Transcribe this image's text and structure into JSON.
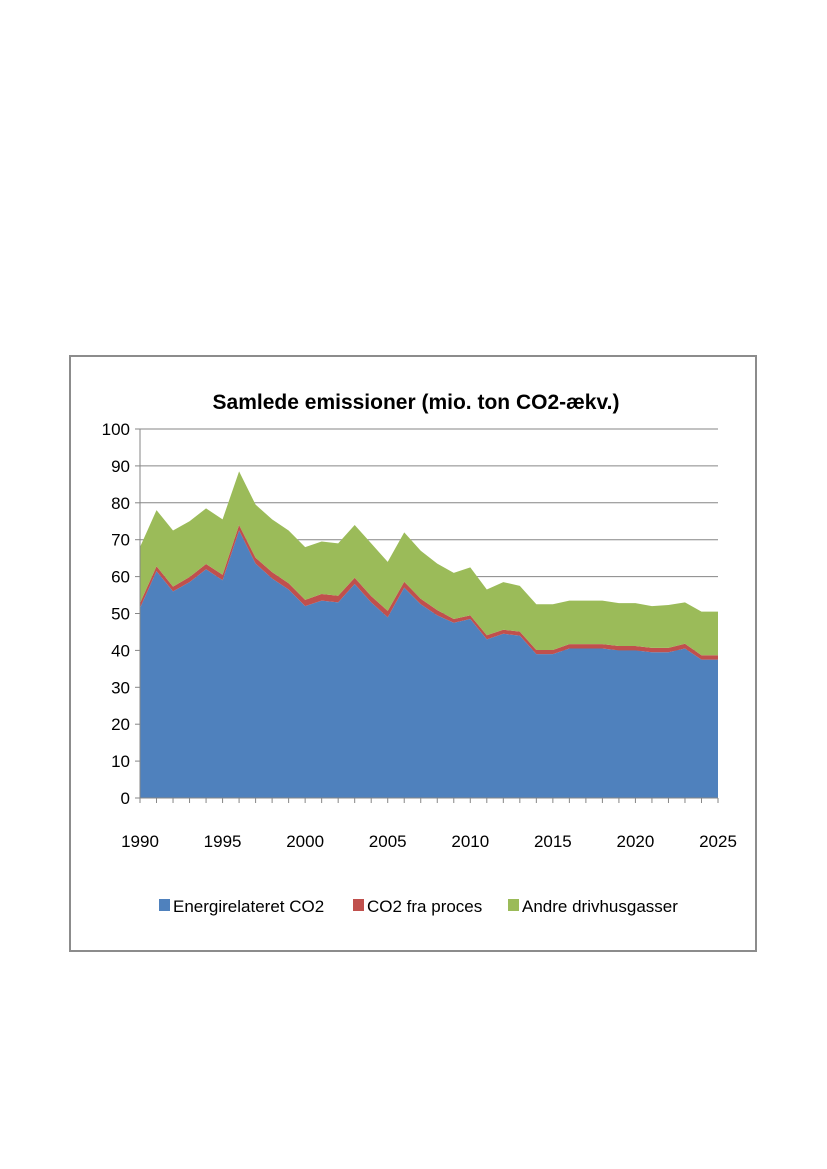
{
  "chart_data": {
    "type": "area",
    "stacked": true,
    "title": "Samlede emissioner (mio. ton CO2-ækv.)",
    "xlabel": "",
    "ylabel": "",
    "xlim": [
      1990,
      2025
    ],
    "ylim": [
      0,
      100
    ],
    "x_ticks": [
      1990,
      1995,
      2000,
      2005,
      2010,
      2015,
      2020,
      2025
    ],
    "y_ticks": [
      0,
      10,
      20,
      30,
      40,
      50,
      60,
      70,
      80,
      90,
      100
    ],
    "grid": true,
    "legend_position": "bottom",
    "x": [
      1990,
      1991,
      1992,
      1993,
      1994,
      1995,
      1996,
      1997,
      1998,
      1999,
      2000,
      2001,
      2002,
      2003,
      2004,
      2005,
      2006,
      2007,
      2008,
      2009,
      2010,
      2011,
      2012,
      2013,
      2014,
      2015,
      2016,
      2017,
      2018,
      2019,
      2020,
      2021,
      2022,
      2023,
      2024,
      2025
    ],
    "series": [
      {
        "name": "Energirelateret CO2",
        "color": "#4f81bd",
        "values": [
          51.5,
          61.5,
          56.0,
          58.5,
          62.0,
          59.0,
          72.5,
          63.5,
          59.5,
          56.5,
          52.0,
          53.5,
          53.0,
          58.0,
          53.0,
          49.0,
          57.0,
          52.5,
          49.5,
          47.5,
          48.5,
          43.0,
          44.5,
          44.0,
          39.0,
          39.0,
          40.5,
          40.5,
          40.5,
          40.0,
          40.0,
          39.5,
          39.5,
          40.5,
          37.5,
          37.5
        ]
      },
      {
        "name": "CO2 fra proces",
        "color": "#c0504d",
        "values": [
          1.3,
          1.3,
          1.3,
          1.4,
          1.4,
          1.5,
          1.5,
          1.6,
          1.7,
          1.7,
          1.7,
          1.8,
          1.8,
          1.7,
          1.7,
          1.7,
          1.6,
          1.5,
          1.4,
          1.0,
          1.0,
          1.1,
          1.1,
          1.1,
          1.1,
          1.1,
          1.2,
          1.2,
          1.2,
          1.2,
          1.2,
          1.2,
          1.2,
          1.3,
          1.2,
          1.2
        ]
      },
      {
        "name": "Andre drivhusgasser",
        "color": "#9bbb59",
        "values": [
          15.2,
          15.2,
          15.2,
          15.1,
          15.1,
          15.0,
          14.5,
          14.4,
          14.3,
          14.3,
          14.3,
          14.2,
          14.2,
          14.3,
          14.3,
          13.3,
          13.4,
          13.0,
          12.6,
          12.5,
          13.0,
          12.4,
          12.9,
          12.4,
          12.4,
          12.4,
          11.8,
          11.8,
          11.8,
          11.6,
          11.6,
          11.3,
          11.6,
          11.2,
          11.8,
          11.8
        ]
      }
    ]
  }
}
